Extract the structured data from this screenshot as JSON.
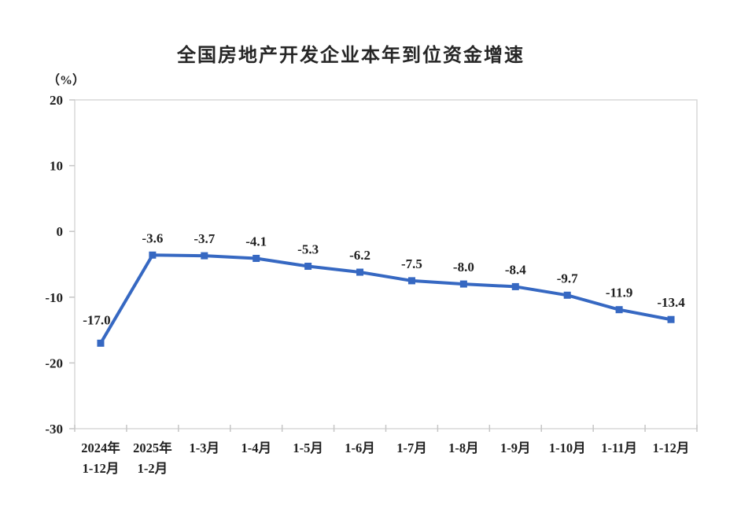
{
  "header": {
    "title": "全国房地产开发企业本年到位资金增速",
    "unit_label": "（%）"
  },
  "chart_data": {
    "type": "line",
    "title": "全国房地产开发企业本年到位资金增速",
    "ylabel": "（%）",
    "categories": [
      [
        "2024年",
        "1-12月"
      ],
      [
        "2025年",
        "1-2月"
      ],
      [
        "1-3月"
      ],
      [
        "1-4月"
      ],
      [
        "1-5月"
      ],
      [
        "1-6月"
      ],
      [
        "1-7月"
      ],
      [
        "1-8月"
      ],
      [
        "1-9月"
      ],
      [
        "1-10月"
      ],
      [
        "1-11月"
      ],
      [
        "1-12月"
      ]
    ],
    "values": [
      -17.0,
      -3.6,
      -3.7,
      -4.1,
      -5.3,
      -6.2,
      -7.5,
      -8.0,
      -8.4,
      -9.7,
      -11.9,
      -13.4
    ],
    "point_labels": [
      "-17.0",
      "-3.6",
      "-3.7",
      "-4.1",
      "-5.3",
      "-6.2",
      "-7.5",
      "-8.0",
      "-8.4",
      "-9.7",
      "-11.9",
      "-13.4"
    ],
    "ylim": [
      -30,
      20
    ],
    "yticks": [
      20,
      10,
      0,
      -10,
      -20,
      -30
    ],
    "grid": false,
    "legend": "none",
    "marker": "square",
    "line_color": "#3668C2",
    "axis_color": "#C6C6C6",
    "border_color": "#D9D9D9",
    "text_color": "#1F1F1F",
    "label_offsets": [
      [
        -5,
        -24
      ]
    ]
  }
}
